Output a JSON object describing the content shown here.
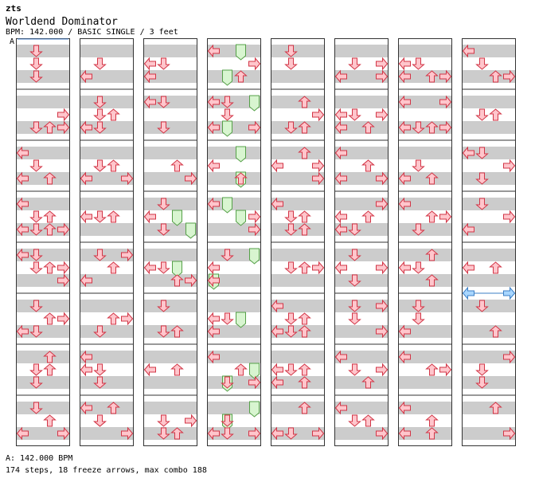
{
  "header": {
    "site": "zts",
    "song_title": "Worldend Dominator",
    "meta": "BPM: 142.000 / BASIC SINGLE / 3 feet",
    "speed_marker": "A"
  },
  "footer": {
    "bpm_line": "A: 142.000 BPM",
    "stats": "174 steps, 18 freeze arrows, max combo 188"
  },
  "colors": {
    "tap_fill": "#ffc6cc",
    "tap_stroke": "#d23546",
    "freeze_fill": "#d8f5d0",
    "freeze_stroke": "#55a048",
    "shock_fill": "#a8d6ff",
    "shock_stroke": "#3b7fc6",
    "stripe": "#cccccc",
    "border": "#333333"
  },
  "chart": {
    "columns": 8,
    "measures_per_column": 8,
    "lanes": [
      "left",
      "down",
      "up",
      "right"
    ],
    "arrows": [
      [
        [
          0.25,
          1
        ],
        [
          0.5,
          1
        ],
        [
          0.75,
          1
        ]
      ],
      [
        [
          0.75,
          3
        ],
        [
          0.5,
          3
        ],
        [
          0.75,
          2
        ],
        [
          0.75,
          1
        ]
      ],
      [
        [
          0.25,
          0
        ],
        [
          0.5,
          1
        ],
        [
          0.75,
          2
        ],
        [
          0.75,
          0
        ]
      ],
      [
        [
          0.25,
          0
        ],
        [
          0.75,
          1
        ],
        [
          0.25,
          0
        ],
        [
          0.5,
          1
        ],
        [
          0.75,
          2
        ],
        [
          0.75,
          0
        ],
        [
          0.5,
          2
        ],
        [
          0.75,
          3
        ]
      ],
      [
        [
          0.25,
          0
        ],
        [
          0.5,
          1
        ],
        [
          0.5,
          3
        ],
        [
          0.5,
          2
        ],
        [
          0.75,
          3
        ],
        [
          0.25,
          1
        ]
      ],
      [
        [
          0.5,
          3
        ],
        [
          0.5,
          2
        ],
        [
          0.75,
          1
        ],
        [
          0.75,
          0
        ],
        [
          0.5,
          3
        ],
        [
          0.25,
          1
        ]
      ],
      [
        [
          0.5,
          1
        ],
        [
          0.25,
          2
        ],
        [
          0.5,
          2
        ],
        [
          0.75,
          1
        ],
        [
          0.5,
          1
        ]
      ],
      [
        [
          0.75,
          3
        ],
        [
          0.5,
          2
        ],
        [
          0.25,
          1
        ],
        [
          0.75,
          0
        ]
      ],
      [
        [
          0.75,
          0
        ],
        [
          0.5,
          1
        ]
      ],
      [
        [
          0.5,
          1
        ],
        [
          0.75,
          0
        ],
        [
          0.25,
          1
        ],
        [
          0.75,
          0
        ],
        [
          0.5,
          2
        ],
        [
          0.75,
          1
        ]
      ],
      [
        [
          0.5,
          1
        ],
        [
          0.75,
          0
        ],
        [
          0.5,
          1
        ],
        [
          0.75,
          0
        ],
        [
          0.5,
          2
        ],
        [
          0.75,
          3
        ]
      ],
      [
        [
          0.5,
          2
        ],
        [
          0.5,
          0
        ],
        [
          0.5,
          1
        ]
      ],
      [
        [
          0.25,
          1
        ],
        [
          0.5,
          2
        ],
        [
          0.25,
          3
        ],
        [
          0.75,
          0
        ]
      ],
      [
        [
          0.5,
          3
        ],
        [
          0.5,
          2
        ],
        [
          0.75,
          1
        ]
      ],
      [
        [
          0.25,
          0
        ],
        [
          0.5,
          1
        ],
        [
          0.75,
          1
        ],
        [
          0.5,
          0
        ]
      ],
      [
        [
          0.25,
          2
        ],
        [
          0.5,
          1
        ],
        [
          0.25,
          0
        ],
        [
          0.5,
          1
        ],
        [
          0.75,
          3
        ],
        [
          0.5,
          1
        ]
      ],
      [
        [
          0.5,
          0
        ],
        [
          0.75,
          0
        ],
        [
          0.5,
          1
        ]
      ],
      [
        [
          0.25,
          0
        ],
        [
          0.25,
          1
        ],
        [
          0.75,
          1
        ]
      ],
      [
        [
          0.5,
          2
        ],
        [
          0.75,
          3
        ]
      ],
      [
        [
          0.5,
          0
        ],
        [
          0.25,
          1
        ],
        [
          0.75,
          1
        ],
        [
          0.75,
          1
        ]
      ],
      [
        [
          0.5,
          0
        ],
        [
          0.5,
          1
        ],
        [
          0.75,
          2
        ],
        [
          0.75,
          3
        ]
      ],
      [
        [
          0.25,
          1
        ],
        [
          0.75,
          2
        ],
        [
          0.75,
          1
        ]
      ],
      [
        [
          0.5,
          0
        ],
        [
          0.5,
          2
        ]
      ],
      [
        [
          0.5,
          3
        ],
        [
          0.5,
          1
        ],
        [
          0.75,
          2
        ],
        [
          0.75,
          1
        ]
      ],
      [
        [
          0.25,
          0
        ],
        [
          0.5,
          3
        ],
        [
          0.75,
          2
        ]
      ],
      [
        [
          0.25,
          0
        ],
        [
          0.5,
          1
        ],
        [
          0.75,
          0
        ],
        [
          0.75,
          3
        ],
        [
          0.25,
          1
        ]
      ],
      [
        [
          0.5,
          0
        ],
        [
          0.75,
          2
        ]
      ],
      [
        [
          0.25,
          0
        ],
        [
          0.75,
          3
        ],
        [
          0.5,
          3
        ]
      ],
      [
        [
          0.25,
          1
        ],
        [
          0.5,
          0
        ],
        [
          0.75,
          0
        ]
      ],
      [
        [
          0.5,
          0
        ],
        [
          0.75,
          0
        ],
        [
          0.5,
          1
        ]
      ],
      [
        [
          0.25,
          0
        ],
        [
          0.75,
          1
        ],
        [
          0.5,
          2
        ],
        [
          0.75,
          3
        ]
      ],
      [
        [
          0.75,
          0
        ],
        [
          0.75,
          3
        ],
        [
          0.5,
          1
        ],
        [
          0.75,
          1
        ]
      ],
      [
        [
          0.25,
          1
        ],
        [
          0.5,
          1
        ]
      ],
      [
        [
          0.75,
          1
        ],
        [
          0.25,
          2
        ],
        [
          0.5,
          3
        ],
        [
          0.75,
          2
        ]
      ],
      [
        [
          0.5,
          0
        ],
        [
          0.75,
          3
        ],
        [
          0.25,
          2
        ],
        [
          0.5,
          3
        ]
      ],
      [
        [
          0.25,
          0
        ],
        [
          0.5,
          2
        ],
        [
          0.75,
          1
        ],
        [
          0.5,
          1
        ],
        [
          0.75,
          2
        ]
      ],
      [
        [
          0.5,
          3
        ],
        [
          0.5,
          1
        ],
        [
          0.5,
          2
        ]
      ],
      [
        [
          0.25,
          0
        ],
        [
          0.5,
          2
        ],
        [
          0.75,
          1
        ],
        [
          0.75,
          2
        ],
        [
          0.5,
          1
        ],
        [
          0.75,
          0
        ]
      ],
      [
        [
          0.5,
          0
        ],
        [
          0.75,
          2
        ],
        [
          0.75,
          0
        ],
        [
          0.5,
          1
        ],
        [
          0.5,
          2
        ]
      ],
      [
        [
          0.25,
          2
        ],
        [
          0.75,
          0
        ],
        [
          0.75,
          1
        ],
        [
          0.75,
          3
        ]
      ],
      [
        [
          0.5,
          1
        ],
        [
          0.5,
          3
        ],
        [
          0.75,
          0
        ],
        [
          0.75,
          3
        ]
      ],
      [
        [
          0.5,
          0
        ],
        [
          0.75,
          2
        ],
        [
          0.75,
          0
        ],
        [
          0.5,
          1
        ],
        [
          0.5,
          3
        ]
      ],
      [
        [
          0.25,
          0
        ],
        [
          0.5,
          2
        ],
        [
          0.75,
          0
        ],
        [
          0.75,
          3
        ],
        [
          0.5,
          2
        ],
        [
          0.75,
          3
        ]
      ],
      [
        [
          0.25,
          3
        ],
        [
          0.5,
          2
        ],
        [
          0.75,
          0
        ],
        [
          0.25,
          3
        ],
        [
          0.5,
          0
        ],
        [
          0.75,
          1
        ]
      ],
      [
        [
          0.25,
          1
        ],
        [
          0.75,
          1
        ],
        [
          0.5,
          3
        ],
        [
          0.5,
          0
        ]
      ],
      [
        [
          0.25,
          3
        ],
        [
          0.75,
          3
        ],
        [
          0.5,
          1
        ],
        [
          0.25,
          1
        ]
      ],
      [
        [
          0.25,
          0
        ],
        [
          0.5,
          1
        ],
        [
          0.5,
          3
        ],
        [
          0.75,
          2
        ]
      ],
      [
        [
          0.25,
          0
        ],
        [
          0.5,
          1
        ],
        [
          0.75,
          3
        ],
        [
          0.5,
          2
        ]
      ],
      [
        [
          0.5,
          0
        ],
        [
          0.5,
          1
        ],
        [
          0.75,
          0
        ],
        [
          0.75,
          2
        ],
        [
          0.75,
          3
        ]
      ],
      [
        [
          0.25,
          0
        ],
        [
          0.75,
          1
        ],
        [
          0.75,
          0
        ],
        [
          0.75,
          2
        ],
        [
          0.25,
          3
        ],
        [
          0.75,
          3
        ]
      ],
      [
        [
          0.75,
          0
        ],
        [
          0.75,
          2
        ],
        [
          0.5,
          1
        ]
      ],
      [
        [
          0.25,
          0
        ],
        [
          0.5,
          3
        ],
        [
          0.5,
          2
        ],
        [
          0.75,
          1
        ]
      ],
      [
        [
          0.5,
          0
        ],
        [
          0.5,
          1
        ],
        [
          0.75,
          2
        ],
        [
          0.25,
          2
        ]
      ],
      [
        [
          0.5,
          1
        ],
        [
          0.75,
          0
        ],
        [
          0.25,
          1
        ],
        [
          0.75,
          0
        ]
      ],
      [
        [
          0.5,
          2
        ],
        [
          0.5,
          3
        ],
        [
          0.25,
          0
        ]
      ],
      [
        [
          0.5,
          2
        ],
        [
          0.75,
          0
        ],
        [
          0.25,
          0
        ],
        [
          0.75,
          2
        ]
      ],
      [
        [
          0.25,
          0
        ],
        [
          0.5,
          1
        ],
        [
          0.75,
          2
        ],
        [
          0.75,
          3
        ]
      ],
      [
        [
          0.5,
          1
        ],
        [
          0.5,
          2
        ]
      ],
      [
        [
          0.25,
          1
        ],
        [
          0.5,
          3
        ],
        [
          0.25,
          0
        ],
        [
          0.75,
          1
        ]
      ],
      [
        [
          0.5,
          3
        ],
        [
          0.25,
          1
        ],
        [
          0.75,
          0
        ]
      ],
      [
        [
          0.5,
          0
        ],
        [
          0.5,
          2
        ]
      ],
      [
        [
          0.25,
          1
        ],
        [
          0.75,
          2
        ]
      ],
      [
        [
          0.25,
          3
        ],
        [
          0.5,
          1
        ],
        [
          0.75,
          1
        ]
      ],
      [
        [
          0.25,
          2
        ],
        [
          0.75,
          3
        ]
      ]
    ],
    "freezes": [
      [
        19,
        0.5,
        2
      ],
      [
        19,
        0.75,
        3
      ],
      [
        25,
        0.75,
        1
      ],
      [
        25,
        0.25,
        3
      ],
      [
        27,
        0.25,
        1
      ],
      [
        27,
        0.5,
        2
      ],
      [
        29,
        0.5,
        2
      ],
      [
        31,
        0.25,
        3
      ],
      [
        31,
        0.5,
        1
      ],
      [
        20,
        0.5,
        2
      ],
      [
        24,
        0.75,
        1
      ],
      [
        26,
        0.75,
        2
      ],
      [
        26,
        0.25,
        2
      ],
      [
        28,
        0.25,
        3
      ],
      [
        30,
        0.75,
        1
      ],
      [
        28,
        0.75,
        0
      ],
      [
        24,
        0.25,
        2
      ],
      [
        30,
        0.5,
        3
      ]
    ],
    "shocks": [
      [
        61,
        0.0,
        [
          0,
          3
        ]
      ]
    ]
  }
}
